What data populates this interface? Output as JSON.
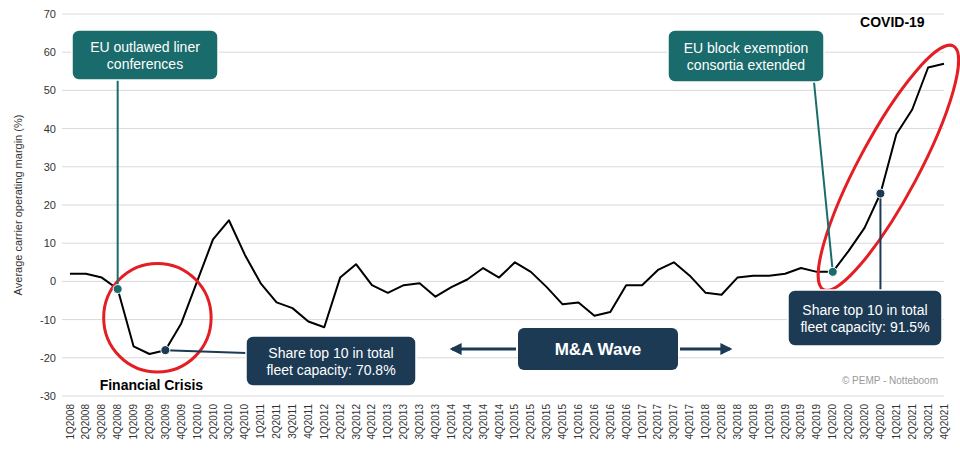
{
  "chart_data": {
    "type": "line",
    "y_label": "Average carrier operating margin (%)",
    "categories": [
      "1Q2008",
      "2Q2008",
      "3Q2008",
      "4Q2008",
      "1Q2009",
      "2Q2009",
      "3Q2009",
      "4Q2009",
      "1Q2010",
      "2Q2010",
      "3Q2010",
      "4Q2010",
      "1Q2011",
      "2Q2011",
      "3Q2011",
      "4Q2011",
      "1Q2012",
      "2Q2012",
      "3Q2012",
      "4Q2012",
      "1Q2013",
      "2Q2013",
      "3Q2013",
      "4Q2013",
      "1Q2014",
      "2Q2014",
      "3Q2014",
      "4Q2014",
      "1Q2015",
      "2Q2015",
      "3Q2015",
      "4Q2015",
      "1Q2016",
      "2Q2016",
      "3Q2016",
      "4Q2016",
      "1Q2017",
      "2Q2017",
      "3Q2017",
      "4Q2017",
      "1Q2018",
      "2Q2018",
      "3Q2018",
      "4Q2018",
      "1Q2019",
      "2Q2019",
      "3Q2019",
      "4Q2019",
      "1Q2020",
      "2Q2020",
      "3Q2020",
      "4Q2020",
      "1Q2021",
      "2Q2021",
      "3Q2021",
      "4Q2021"
    ],
    "values": [
      2,
      2,
      1,
      -2,
      -17,
      -19,
      -18,
      -11,
      0,
      11,
      16,
      7,
      -0.5,
      -5.5,
      -7,
      -10.5,
      -12,
      1,
      4.5,
      -1,
      -3,
      -1,
      -0.5,
      -4,
      -1.5,
      0.5,
      3.5,
      1,
      5,
      2.5,
      -1.5,
      -6,
      -5.5,
      -9,
      -8,
      -1,
      -1,
      3,
      5,
      1.5,
      -3,
      -3.5,
      1,
      1.5,
      1.5,
      2,
      3.5,
      2.5,
      2.5,
      8,
      14,
      23,
      38.5,
      45,
      56,
      57
    ],
    "color": "#000000",
    "ylim": [
      -30,
      70
    ],
    "yticks": [
      -30,
      -20,
      -10,
      0,
      10,
      20,
      30,
      40,
      50,
      60,
      70
    ],
    "grid": true,
    "callouts": [
      {
        "lines": [
          "EU outlawed liner",
          "conferences"
        ],
        "category": "4Q2008"
      },
      {
        "lines": [
          "Share top 10 in total",
          "fleet capacity: 70.8%"
        ],
        "category": "3Q2009"
      },
      {
        "lines": [
          "EU block exemption",
          "consortia extended"
        ],
        "category": "1Q2020"
      },
      {
        "lines": [
          "Share top 10 in total",
          "fleet capacity: 91.5%"
        ],
        "category": "4Q2020"
      }
    ],
    "highlights": [
      {
        "label": "Financial Crisis",
        "from": "4Q2008",
        "to": "1Q2010"
      },
      {
        "label": "COVID-19",
        "from": "1Q2020",
        "to": "4Q2021"
      }
    ],
    "period_label": "M&A Wave",
    "credit": "© PEMP - Notteboom"
  }
}
